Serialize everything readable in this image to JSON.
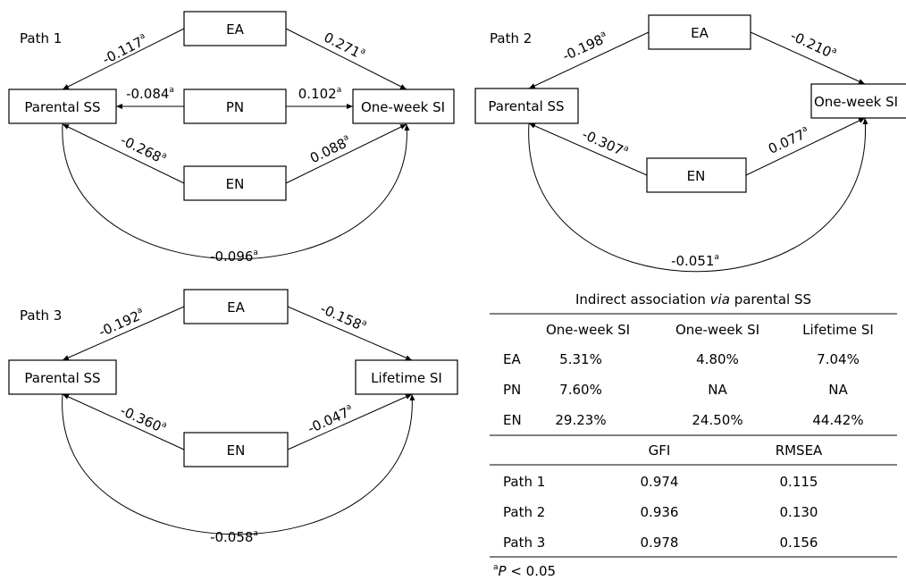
{
  "sup": "a",
  "panels": {
    "p1": {
      "title": "Path 1",
      "nodes": {
        "ea": "EA",
        "pn": "PN",
        "en": "EN",
        "ss": "Parental SS",
        "out": "One-week SI"
      },
      "coef": {
        "ea_ss": "-0.117",
        "ea_out": "0.271",
        "pn_ss": "-0.084",
        "pn_out": "0.102",
        "en_ss": "-0.268",
        "en_out": "0.088",
        "ss_out": "-0.096"
      }
    },
    "p2": {
      "title": "Path 2",
      "nodes": {
        "ea": "EA",
        "en": "EN",
        "ss": "Parental SS",
        "out": "One-week SI"
      },
      "coef": {
        "ea_ss": "-0.198",
        "ea_out": "-0.210",
        "en_ss": "-0.307",
        "en_out": "0.077",
        "ss_out": "-0.051"
      }
    },
    "p3": {
      "title": "Path 3",
      "nodes": {
        "ea": "EA",
        "en": "EN",
        "ss": "Parental SS",
        "out": "Lifetime SI"
      },
      "coef": {
        "ea_ss": "-0.192",
        "ea_out": "-0.158",
        "en_ss": "-0.360",
        "en_out": "-0.047",
        "ss_out": "-0.058"
      }
    }
  },
  "table": {
    "title_pre": "Indirect association ",
    "title_it": "via",
    "title_post": " parental SS",
    "headers": [
      "",
      "One-week SI",
      "One-week SI",
      "Lifetime SI"
    ],
    "rows": [
      [
        "EA",
        "5.31%",
        "4.80%",
        "7.04%"
      ],
      [
        "PN",
        "7.60%",
        "NA",
        "NA"
      ],
      [
        "EN",
        "29.23%",
        "24.50%",
        "44.42%"
      ]
    ],
    "fit_headers": [
      "",
      "GFI",
      "RMSEA"
    ],
    "fit_rows": [
      [
        "Path 1",
        "0.974",
        "0.115"
      ],
      [
        "Path 2",
        "0.936",
        "0.130"
      ],
      [
        "Path 3",
        "0.978",
        "0.156"
      ]
    ],
    "footnote_sup": "a",
    "footnote_p": "P",
    "footnote_rest": " < 0.05"
  }
}
